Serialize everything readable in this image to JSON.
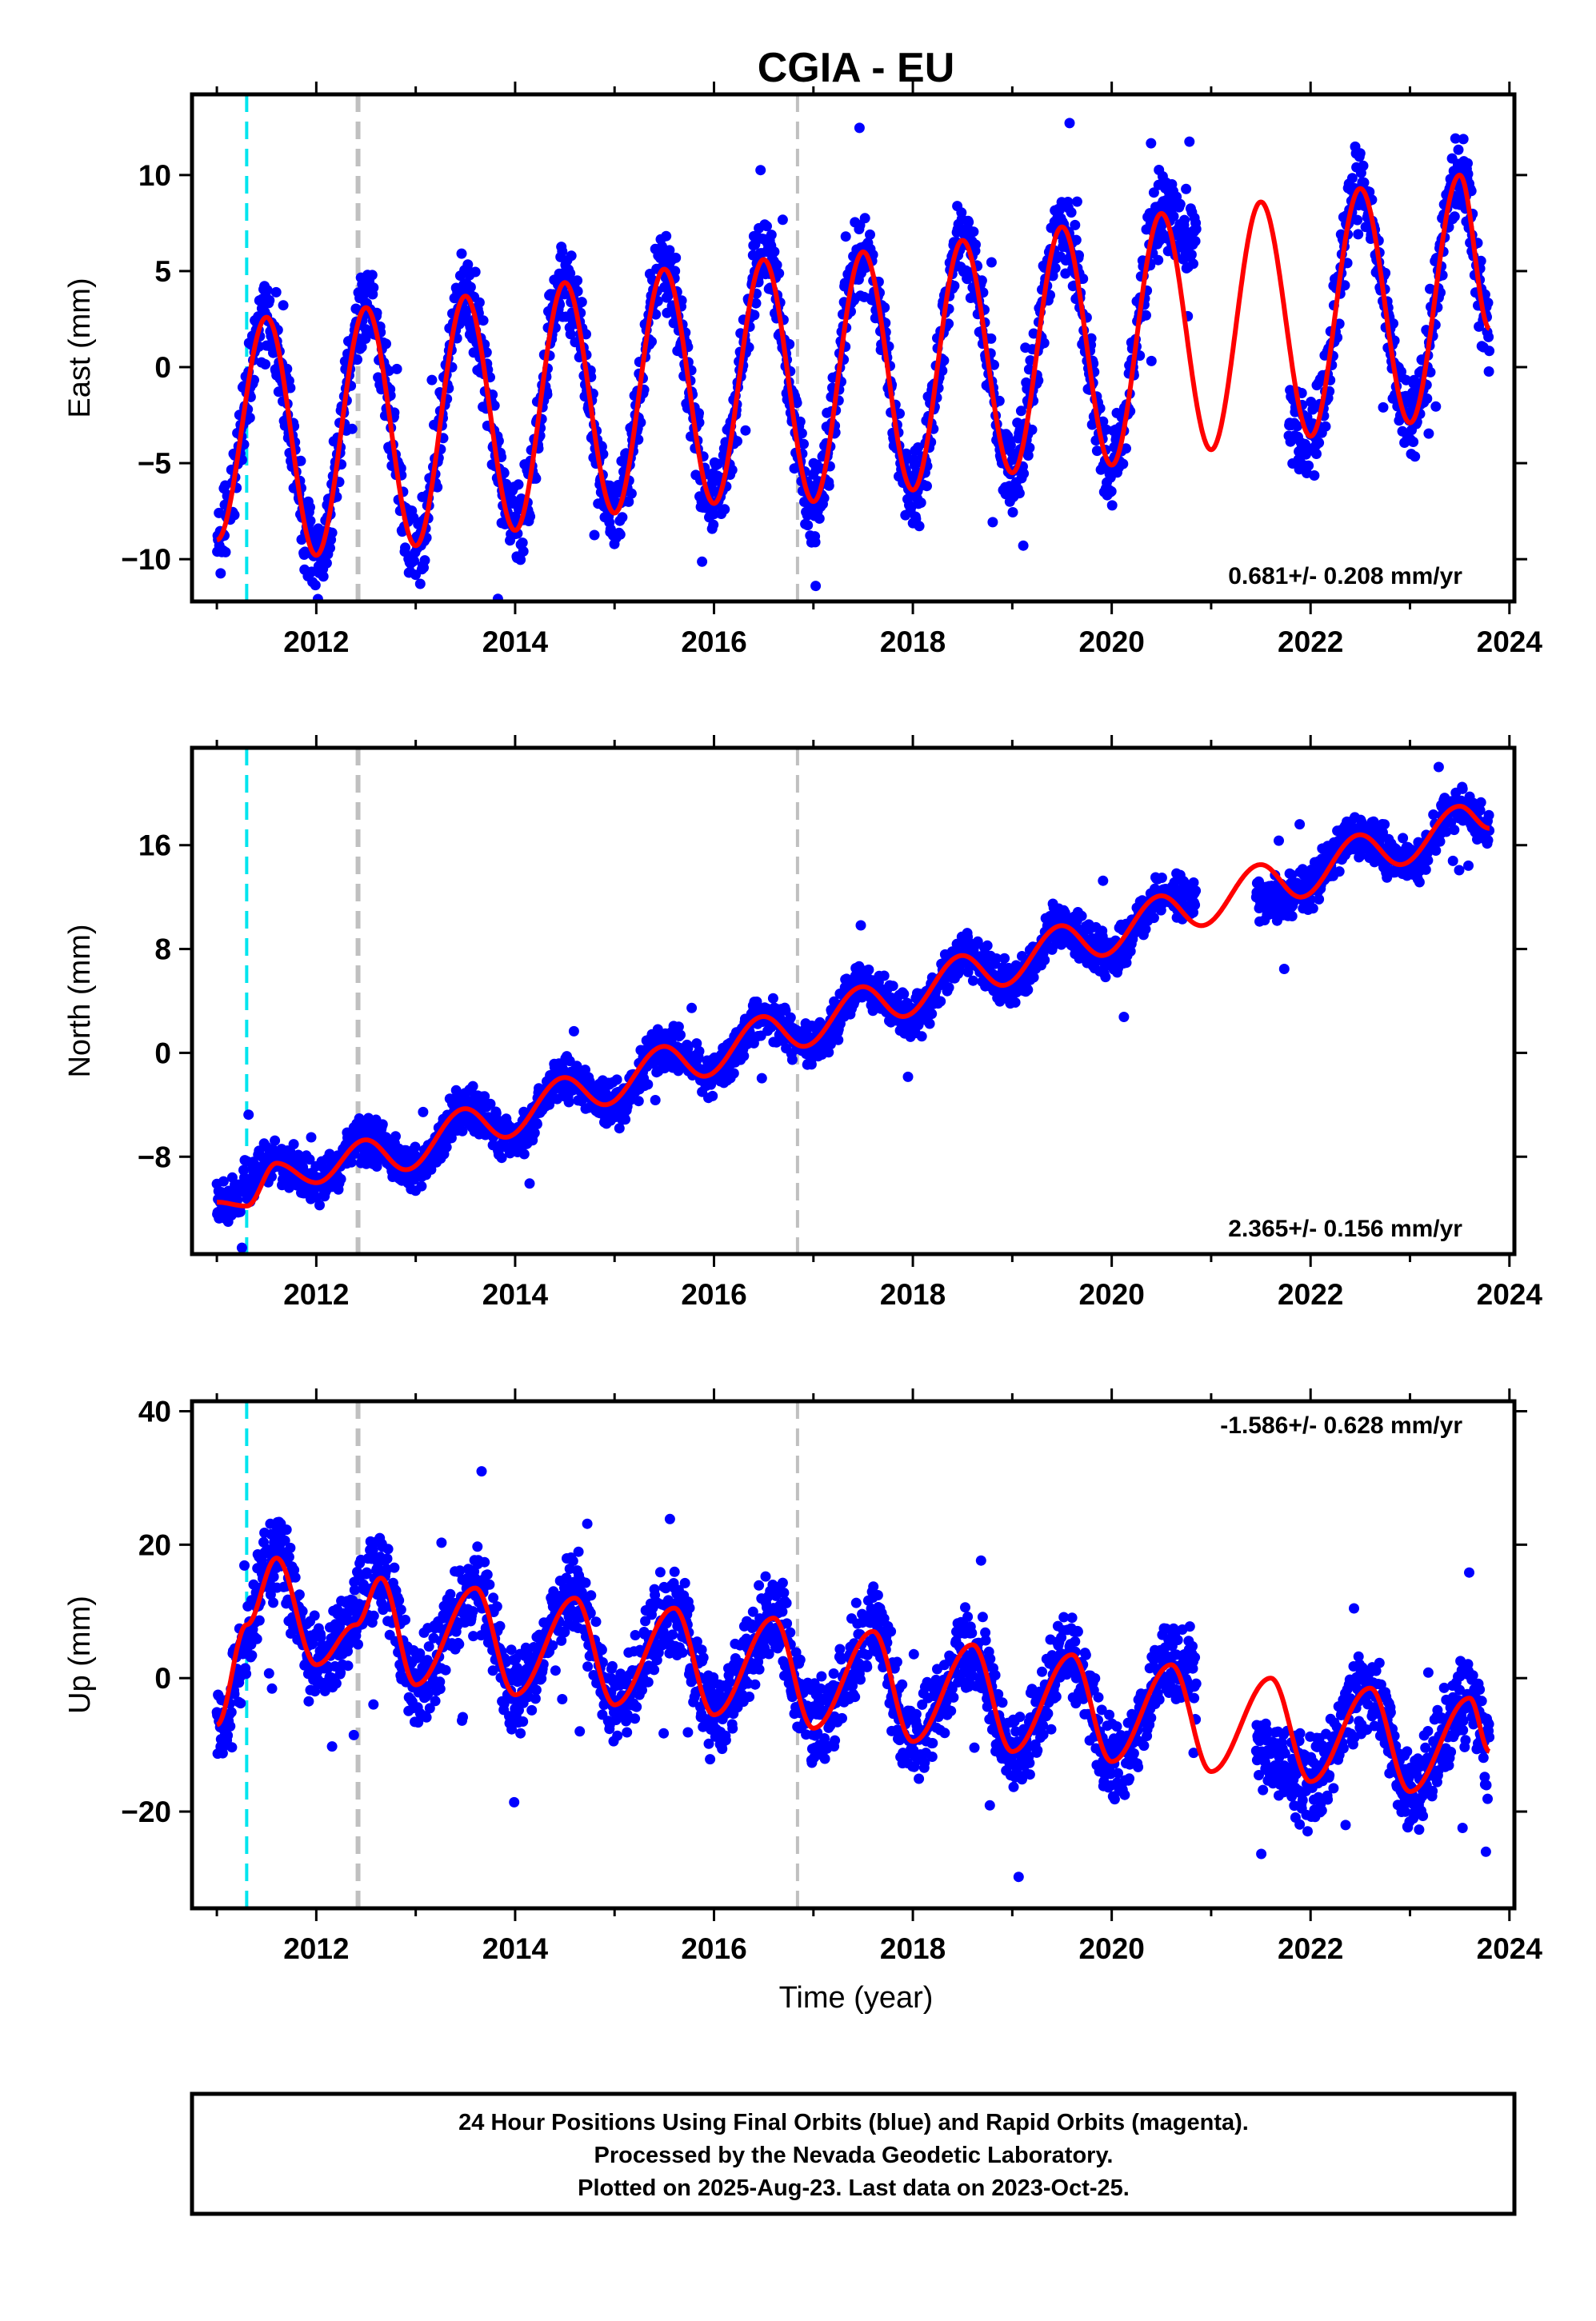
{
  "chart_data": {
    "title": "CGIA - EU",
    "type": "scatter",
    "xlabel": "Time (year)",
    "xlim": [
      2010.75,
      2024.05
    ],
    "xticks": [
      2012,
      2014,
      2016,
      2018,
      2020,
      2022,
      2024
    ],
    "xtick_labels": [
      "2012",
      "2014",
      "2016",
      "2018",
      "2020",
      "2022",
      "2024"
    ],
    "event_lines": [
      {
        "year": 2011.3,
        "color": "#00e5ee",
        "style": "dashed"
      },
      {
        "year": 2012.42,
        "color": "#c0c0c0",
        "style": "dashed-thick"
      },
      {
        "year": 2016.84,
        "color": "#c0c0c0",
        "style": "dashed"
      }
    ],
    "series_colors": {
      "observations": "#0000ff",
      "model": "#ff0000"
    },
    "panels": [
      {
        "ylabel": "East (mm)",
        "ylim": [
          -12.2,
          14.2
        ],
        "yticks": [
          -10,
          -5,
          0,
          5,
          10
        ],
        "ytick_labels": [
          "−10",
          "−5",
          "0",
          "5",
          "10"
        ],
        "rate": "0.681+/- 0.208 mm/yr",
        "rate_position": "bottom-right",
        "model_curve": {
          "x": [
            2011.0,
            2011.5,
            2012.0,
            2012.5,
            2013.0,
            2013.5,
            2014.0,
            2014.5,
            2015.0,
            2015.5,
            2016.0,
            2016.5,
            2017.0,
            2017.5,
            2018.0,
            2018.5,
            2019.0,
            2019.5,
            2020.0,
            2020.5,
            2021.0,
            2021.5,
            2022.0,
            2022.5,
            2023.0,
            2023.5,
            2023.8
          ],
          "y": [
            -9.0,
            2.6,
            -9.8,
            3.1,
            -9.3,
            3.7,
            -8.5,
            4.4,
            -7.6,
            5.1,
            -7.1,
            5.6,
            -7.0,
            6.0,
            -6.4,
            6.6,
            -5.5,
            7.3,
            -5.1,
            8.0,
            -4.3,
            8.6,
            -3.6,
            9.3,
            -2.9,
            10.0,
            2.0
          ]
        },
        "observations": {
          "x": [
            2011.0,
            2011.5,
            2012.0,
            2012.5,
            2013.0,
            2013.5,
            2014.0,
            2014.5,
            2015.0,
            2015.5,
            2016.0,
            2016.5,
            2017.0,
            2017.5,
            2018.0,
            2018.5,
            2019.0,
            2019.5,
            2020.0,
            2020.5,
            2022.0,
            2022.5,
            2023.0,
            2023.5,
            2023.8
          ],
          "y": [
            -9.0,
            2.6,
            -9.8,
            3.1,
            -9.3,
            3.7,
            -8.5,
            4.4,
            -7.6,
            5.1,
            -7.1,
            5.6,
            -7.0,
            6.0,
            -6.4,
            6.6,
            -5.5,
            7.3,
            -5.1,
            8.0,
            -3.6,
            9.3,
            -2.9,
            10.0,
            2.0
          ]
        }
      },
      {
        "ylabel": "North (mm)",
        "ylim": [
          -15.5,
          23.5
        ],
        "yticks": [
          -8,
          0,
          8,
          16
        ],
        "ytick_labels": [
          "−8",
          "0",
          "8",
          "16"
        ],
        "rate": "2.365+/- 0.156 mm/yr",
        "rate_position": "bottom-right",
        "model_curve": {
          "x": [
            2011.0,
            2011.3,
            2011.6,
            2012.0,
            2012.5,
            2012.9,
            2013.5,
            2013.9,
            2014.5,
            2014.9,
            2015.5,
            2015.9,
            2016.5,
            2016.9,
            2017.5,
            2017.9,
            2018.5,
            2018.9,
            2019.5,
            2019.9,
            2020.5,
            2020.9,
            2021.5,
            2021.9,
            2022.5,
            2022.9,
            2023.5,
            2023.8
          ],
          "y": [
            -11.5,
            -11.8,
            -8.5,
            -10.0,
            -6.7,
            -9.0,
            -4.3,
            -6.5,
            -1.9,
            -4.0,
            0.5,
            -1.8,
            2.8,
            0.5,
            5.1,
            2.8,
            7.5,
            5.2,
            9.8,
            7.5,
            12.1,
            9.8,
            14.5,
            12.0,
            16.8,
            14.5,
            19.0,
            17.3
          ]
        },
        "observations": {
          "x": [
            2011.0,
            2011.6,
            2012.0,
            2012.5,
            2013.0,
            2013.5,
            2014.0,
            2014.5,
            2015.0,
            2015.5,
            2016.0,
            2016.5,
            2017.0,
            2017.5,
            2018.0,
            2018.5,
            2019.0,
            2019.5,
            2020.0,
            2020.5,
            2021.8,
            2022.5,
            2023.0,
            2023.5,
            2023.8
          ],
          "y": [
            -11.5,
            -8.5,
            -10.0,
            -6.7,
            -9.0,
            -4.3,
            -6.5,
            -1.9,
            -4.0,
            0.5,
            -1.8,
            2.8,
            0.5,
            5.1,
            2.8,
            7.5,
            5.2,
            9.8,
            7.5,
            12.1,
            12.0,
            16.8,
            14.5,
            19.0,
            17.3
          ]
        }
      },
      {
        "ylabel": "Up (mm)",
        "ylim": [
          -34.5,
          41.5
        ],
        "yticks": [
          -20,
          0,
          20,
          40
        ],
        "ytick_labels": [
          "−20",
          "0",
          "20",
          "40"
        ],
        "rate": "-1.586+/- 0.628 mm/yr",
        "rate_position": "top-right",
        "model_curve": {
          "x": [
            2011.0,
            2011.3,
            2011.6,
            2012.0,
            2012.4,
            2012.65,
            2013.0,
            2013.6,
            2014.0,
            2014.6,
            2015.0,
            2015.6,
            2016.0,
            2016.6,
            2017.0,
            2017.6,
            2018.0,
            2018.6,
            2019.0,
            2019.6,
            2020.0,
            2020.6,
            2021.0,
            2021.6,
            2022.0,
            2022.6,
            2023.0,
            2023.6,
            2023.8
          ],
          "y": [
            -7.0,
            8.0,
            18.0,
            2.0,
            8.0,
            15.0,
            -1.0,
            13.5,
            -2.5,
            12.0,
            -4.0,
            10.5,
            -5.5,
            9.0,
            -7.5,
            7.0,
            -9.5,
            5.0,
            -11.0,
            3.5,
            -12.5,
            2.0,
            -14.0,
            0.0,
            -15.5,
            -1.5,
            -17.0,
            -3.0,
            -11.0
          ]
        },
        "observations": {
          "x": [
            2011.0,
            2011.6,
            2012.0,
            2012.65,
            2013.0,
            2013.6,
            2014.0,
            2014.6,
            2015.0,
            2015.6,
            2016.0,
            2016.6,
            2017.0,
            2017.6,
            2018.0,
            2018.6,
            2019.0,
            2019.6,
            2020.0,
            2020.6,
            2022.0,
            2022.6,
            2023.0,
            2023.6,
            2023.8
          ],
          "y": [
            -7.0,
            18.0,
            2.0,
            15.0,
            -1.0,
            13.5,
            -2.5,
            12.0,
            -4.0,
            10.5,
            -5.5,
            9.0,
            -7.5,
            7.0,
            -9.5,
            5.0,
            -11.0,
            3.5,
            -12.5,
            2.0,
            -15.5,
            -1.5,
            -17.0,
            -3.0,
            -11.0
          ]
        }
      }
    ]
  },
  "footer": {
    "line1": "24 Hour Positions Using Final Orbits (blue) and Rapid Orbits (magenta).",
    "line2": "Processed by the Nevada Geodetic Laboratory.",
    "line3": "Plotted on 2025-Aug-23. Last data on 2023-Oct-25."
  }
}
